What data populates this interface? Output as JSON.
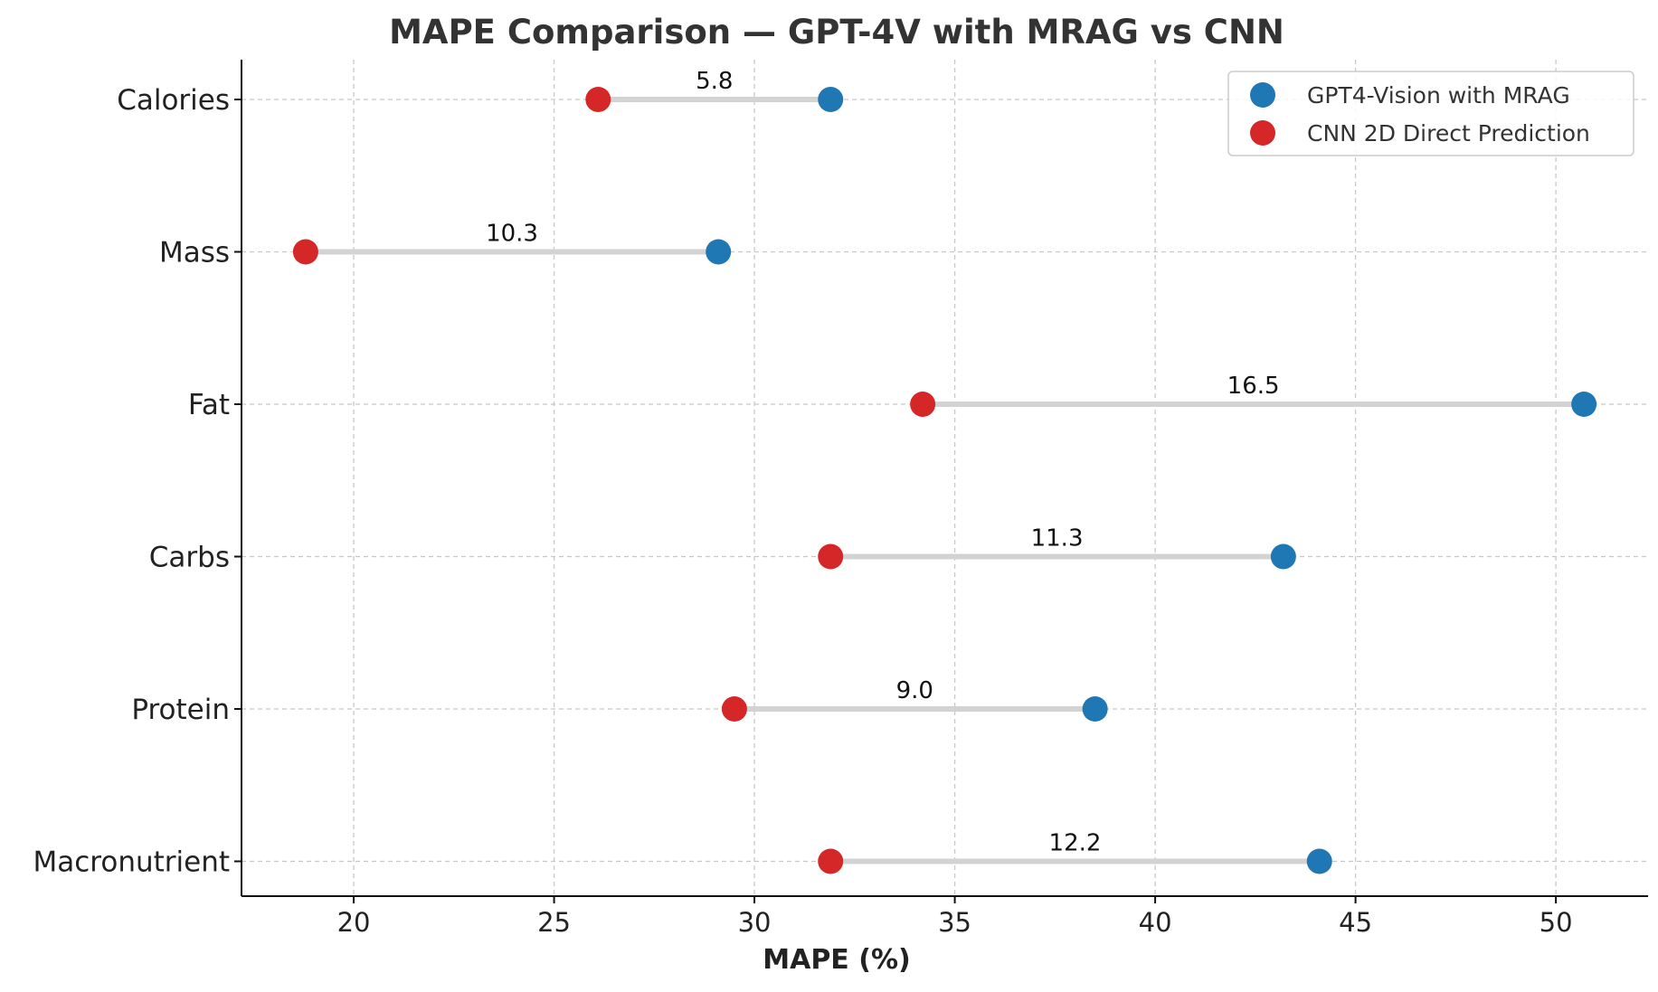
{
  "chart_data": {
    "type": "scatter",
    "subtype": "dumbbell",
    "title": "MAPE Comparison — GPT-4V with MRAG vs CNN",
    "xlabel": "MAPE (%)",
    "ylabel": "",
    "xlim": [
      17.2,
      52.3
    ],
    "xticks": [
      20,
      25,
      30,
      35,
      40,
      45,
      50
    ],
    "categories": [
      "Calories",
      "Mass",
      "Fat",
      "Carbs",
      "Protein",
      "Macronutrient"
    ],
    "series": [
      {
        "name": "GPT4-Vision with MRAG",
        "color": "#1f77b4",
        "values": [
          31.9,
          29.1,
          50.7,
          43.2,
          38.5,
          44.1
        ]
      },
      {
        "name": "CNN 2D Direct Prediction",
        "color": "#d62728",
        "values": [
          26.1,
          18.8,
          34.2,
          31.9,
          29.5,
          31.9
        ]
      }
    ],
    "differences": [
      "5.8",
      "10.3",
      "16.5",
      "11.3",
      "9.0",
      "12.2"
    ],
    "connector_color": "#d3d3d3",
    "grid": true,
    "legend_position": "top-right"
  }
}
